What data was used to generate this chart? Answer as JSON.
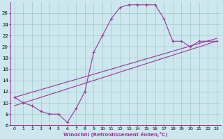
{
  "xlabel": "Windchill (Refroidissement éolien,°C)",
  "bg_color": "#cce8ee",
  "grid_color": "#aacccc",
  "line_color": "#993399",
  "xlim": [
    -0.5,
    23.5
  ],
  "ylim": [
    6,
    28
  ],
  "xticks": [
    0,
    1,
    2,
    3,
    4,
    5,
    6,
    7,
    8,
    9,
    10,
    11,
    12,
    13,
    14,
    15,
    16,
    17,
    18,
    19,
    20,
    21,
    22,
    23
  ],
  "yticks": [
    6,
    8,
    10,
    12,
    14,
    16,
    18,
    20,
    22,
    24,
    26
  ],
  "curve_x": [
    0,
    1,
    2,
    3,
    4,
    5,
    6,
    7,
    8,
    9,
    10,
    11,
    12,
    13,
    14,
    15,
    16,
    17,
    18,
    19,
    20,
    21,
    22,
    23
  ],
  "curve_y": [
    11,
    10,
    9.5,
    8.5,
    8,
    8,
    6.5,
    9,
    12,
    19,
    22,
    25,
    27,
    27.5,
    27.5,
    27.5,
    27.5,
    25,
    21,
    21,
    20,
    21,
    21,
    21
  ],
  "line1_x": [
    0,
    23
  ],
  "line1_y": [
    9.5,
    21.0
  ],
  "line2_x": [
    0,
    23
  ],
  "line2_y": [
    11.0,
    21.5
  ]
}
